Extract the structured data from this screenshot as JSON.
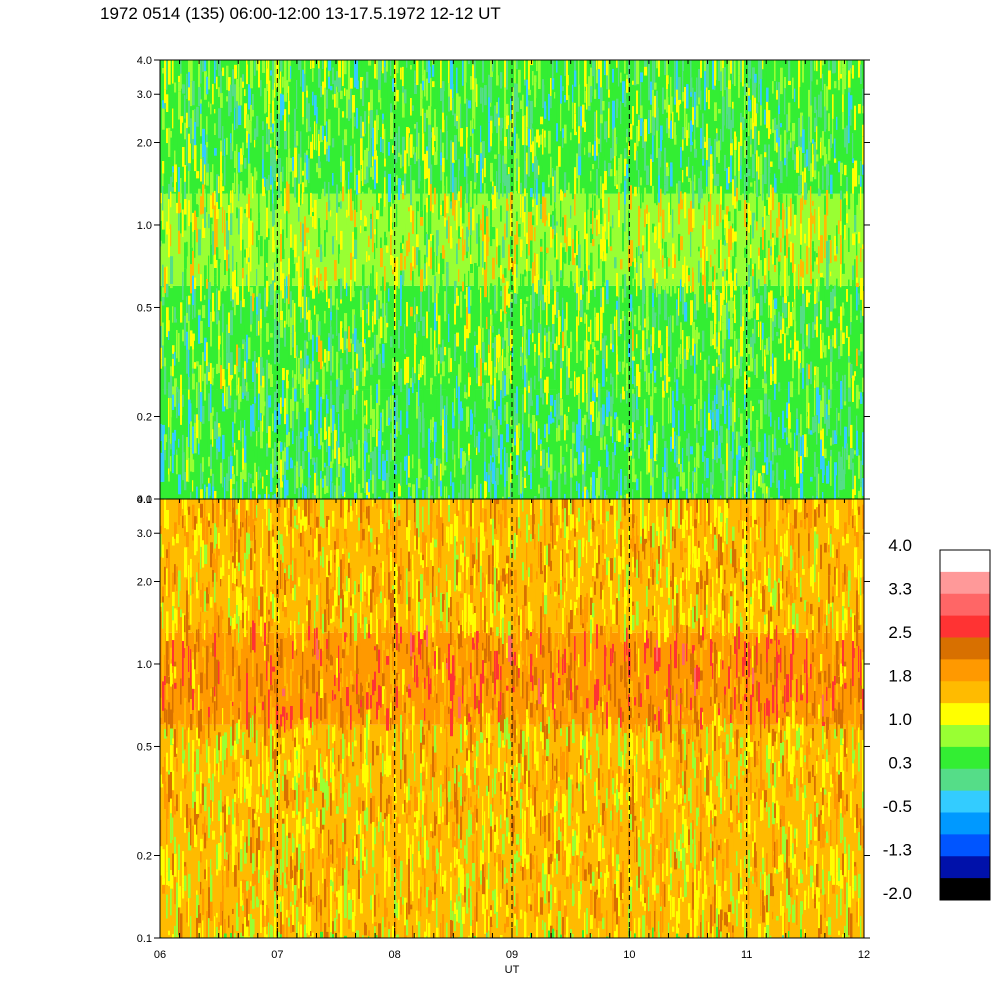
{
  "title": "1972 0514 (135) 06:00-12:00 13-17.5.1972  12-12 UT",
  "chart_data": [
    {
      "type": "heatmap",
      "panel": "top",
      "xlim": [
        6,
        12
      ],
      "ylim": [
        0.1,
        4.0
      ],
      "yscale": "log",
      "yticks": [
        "0.1",
        "0.2",
        "0.5",
        "1.0",
        "2.0",
        "3.0",
        "4.0"
      ],
      "ytick_values": [
        0.1,
        0.2,
        0.5,
        1.0,
        2.0,
        3.0,
        4.0
      ],
      "dominant_level_range": [
        0.3,
        1.0
      ],
      "bands": [
        {
          "from": 0.1,
          "to": 0.25,
          "level": 0.3
        },
        {
          "from": 0.25,
          "to": 0.6,
          "level": 0.6
        },
        {
          "from": 0.6,
          "to": 1.3,
          "level": 0.9
        },
        {
          "from": 1.3,
          "to": 4.0,
          "level": 0.5
        }
      ],
      "vertical_guides_hours": [
        7,
        8,
        9,
        10,
        11
      ]
    },
    {
      "type": "heatmap",
      "panel": "bottom",
      "xlim": [
        6,
        12
      ],
      "ylim": [
        0.1,
        4.0
      ],
      "yscale": "log",
      "yticks": [
        "0.1",
        "0.2",
        "0.5",
        "1.0",
        "2.0",
        "3.0",
        "4.0"
      ],
      "ytick_values": [
        0.1,
        0.2,
        0.5,
        1.0,
        2.0,
        3.0,
        4.0
      ],
      "xticks": [
        "06",
        "07",
        "08",
        "09",
        "10",
        "11",
        "12"
      ],
      "xtick_values": [
        6,
        7,
        8,
        9,
        10,
        11,
        12
      ],
      "xlabel": "UT",
      "dominant_level_range": [
        1.0,
        2.5
      ],
      "bands": [
        {
          "from": 0.1,
          "to": 0.6,
          "level": 1.5
        },
        {
          "from": 0.6,
          "to": 1.3,
          "level": 2.1
        },
        {
          "from": 1.3,
          "to": 4.0,
          "level": 1.6
        }
      ],
      "vertical_guides_hours": [
        7,
        8,
        9,
        10,
        11
      ]
    }
  ],
  "colorbar": {
    "labels": [
      "4.0",
      "3.3",
      "2.5",
      "1.8",
      "1.0",
      "0.3",
      "-0.5",
      "-1.3",
      "-2.0"
    ],
    "colors": [
      "#ffffff",
      "#ff9999",
      "#ff6666",
      "#ff3333",
      "#d87000",
      "#ff9900",
      "#ffbb00",
      "#ffff00",
      "#99ff33",
      "#33ee33",
      "#55dd88",
      "#33ccff",
      "#0099ff",
      "#0055ff",
      "#0011aa",
      "#000000"
    ]
  }
}
